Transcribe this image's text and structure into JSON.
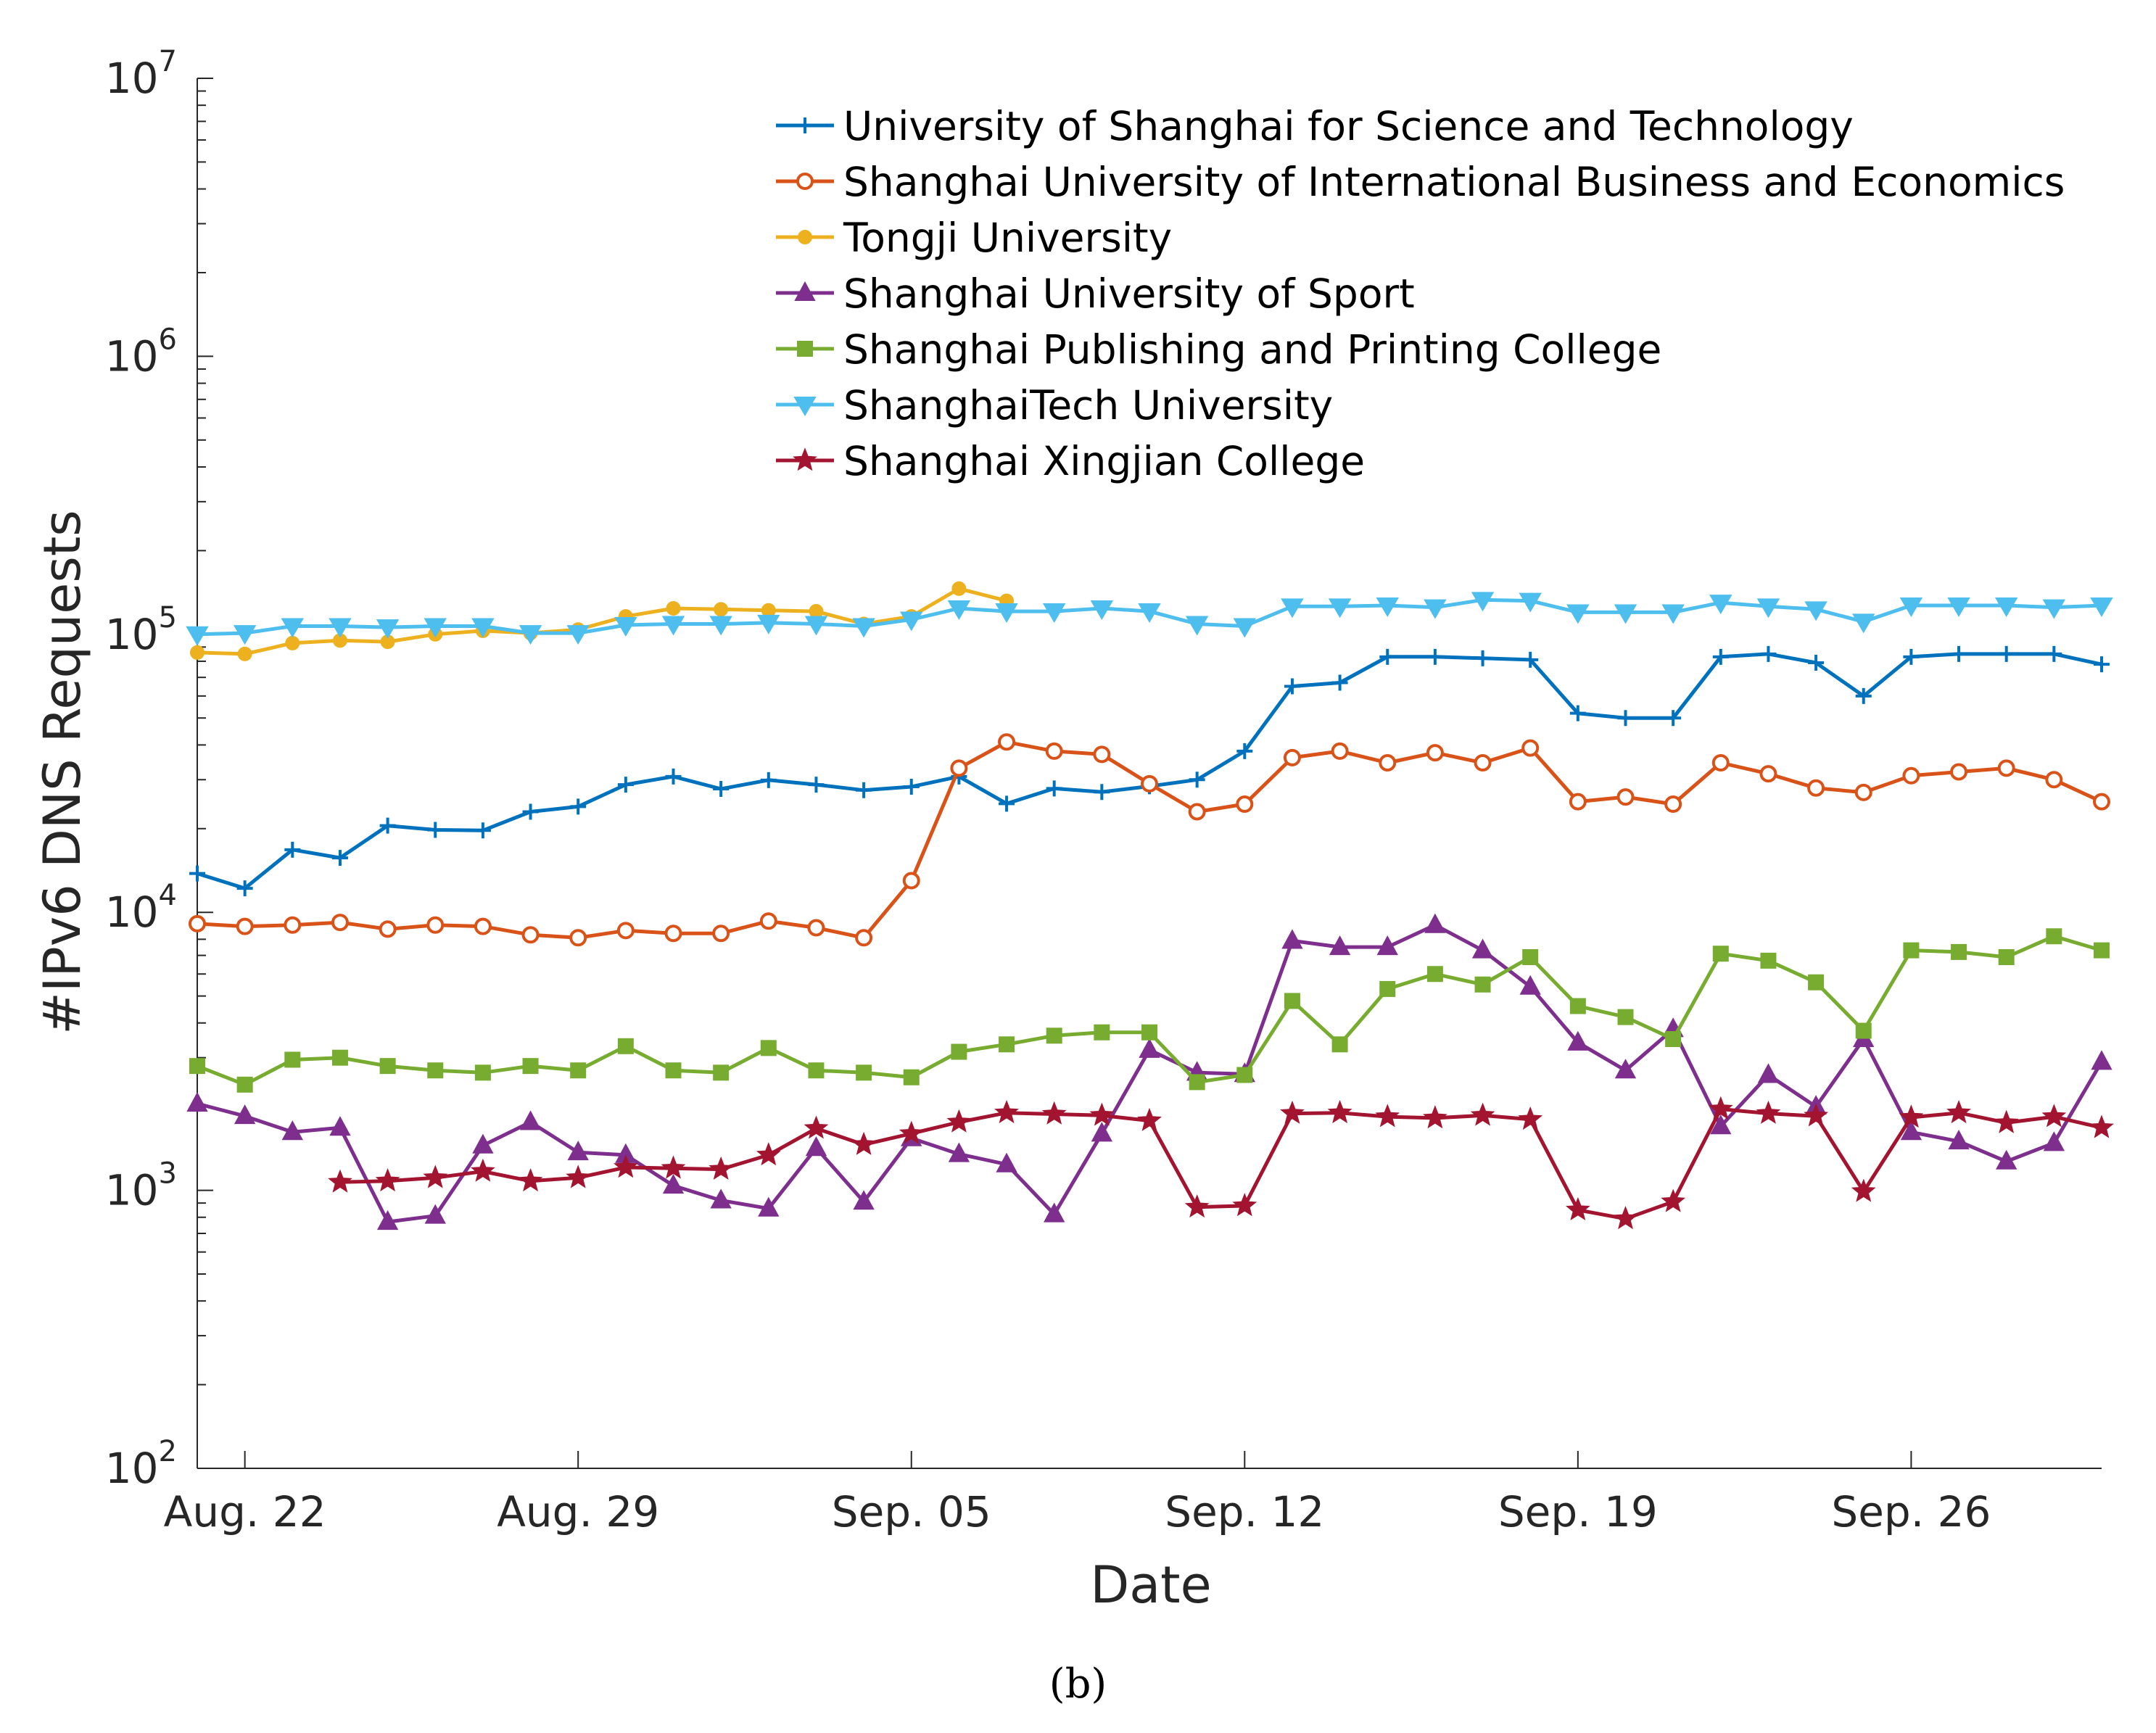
{
  "caption": "(b)",
  "chart_data": {
    "type": "line",
    "xlabel": "Date",
    "ylabel": "#IPv6 DNS Requests",
    "yscale": "log",
    "ylim": [
      100,
      10000000
    ],
    "yticks": [
      {
        "value": 100,
        "base": "10",
        "exp": "2"
      },
      {
        "value": 1000,
        "base": "10",
        "exp": "3"
      },
      {
        "value": 10000,
        "base": "10",
        "exp": "4"
      },
      {
        "value": 100000,
        "base": "10",
        "exp": "5"
      },
      {
        "value": 1000000,
        "base": "10",
        "exp": "6"
      },
      {
        "value": 10000000,
        "base": "10",
        "exp": "7"
      }
    ],
    "x": [
      "Aug. 21",
      "Aug. 22",
      "Aug. 23",
      "Aug. 24",
      "Aug. 25",
      "Aug. 26",
      "Aug. 27",
      "Aug. 28",
      "Aug. 29",
      "Aug. 30",
      "Aug. 31",
      "Sep. 01",
      "Sep. 02",
      "Sep. 03",
      "Sep. 04",
      "Sep. 05",
      "Sep. 06",
      "Sep. 07",
      "Sep. 08",
      "Sep. 09",
      "Sep. 10",
      "Sep. 11",
      "Sep. 12",
      "Sep. 13",
      "Sep. 14",
      "Sep. 15",
      "Sep. 16",
      "Sep. 17",
      "Sep. 18",
      "Sep. 19",
      "Sep. 20",
      "Sep. 21",
      "Sep. 22",
      "Sep. 23",
      "Sep. 24",
      "Sep. 25",
      "Sep. 26",
      "Sep. 27",
      "Sep. 28",
      "Sep. 29",
      "Sep. 30"
    ],
    "xticks": [
      {
        "index": 1,
        "label": "Aug. 22"
      },
      {
        "index": 8,
        "label": "Aug. 29"
      },
      {
        "index": 15,
        "label": "Sep. 05"
      },
      {
        "index": 22,
        "label": "Sep. 12"
      },
      {
        "index": 29,
        "label": "Sep. 19"
      },
      {
        "index": 36,
        "label": "Sep. 26"
      }
    ],
    "grid": false,
    "legend": "top-right",
    "series": [
      {
        "name": "University of Shanghai for Science and Technology",
        "color": "#0072BD",
        "marker": "plus",
        "values": [
          13800,
          12200,
          16800,
          15700,
          20500,
          19800,
          19700,
          23000,
          24000,
          28800,
          30800,
          27800,
          29900,
          28800,
          27500,
          28300,
          30800,
          24600,
          27900,
          27100,
          28400,
          30000,
          38000,
          65000,
          67000,
          83000,
          83000,
          82000,
          81000,
          52000,
          50000,
          50000,
          83000,
          85000,
          79000,
          60000,
          83000,
          85000,
          85000,
          85000,
          78000
        ]
      },
      {
        "name": "Shanghai University of International Business and Economics",
        "color": "#D95319",
        "marker": "circle",
        "values": [
          9100,
          8900,
          9000,
          9200,
          8700,
          9000,
          8900,
          8300,
          8100,
          8600,
          8400,
          8400,
          9300,
          8800,
          8100,
          13000,
          33000,
          41000,
          38000,
          37000,
          29000,
          23000,
          24500,
          36000,
          38000,
          34500,
          37500,
          34500,
          39000,
          25000,
          26000,
          24500,
          34500,
          31500,
          28000,
          27000,
          31000,
          32000,
          33000,
          30000,
          25000
        ]
      },
      {
        "name": "Tongji University",
        "color": "#EDB120",
        "marker": "dot",
        "values": [
          86000,
          85000,
          93000,
          95000,
          94000,
          100000,
          103000,
          101000,
          104000,
          116000,
          124000,
          123000,
          122000,
          121000,
          109000,
          116000,
          146000,
          132000,
          null,
          null,
          null,
          null,
          null,
          null,
          null,
          null,
          null,
          null,
          null,
          null,
          null,
          null,
          null,
          null,
          null,
          null,
          null,
          null,
          null,
          null,
          null
        ]
      },
      {
        "name": "Shanghai University of Sport",
        "color": "#7E2F8E",
        "marker": "triangle-up",
        "values": [
          2050,
          1850,
          1620,
          1680,
          770,
          810,
          1450,
          1760,
          1370,
          1340,
          1040,
          920,
          860,
          1420,
          910,
          1540,
          1350,
          1240,
          820,
          1600,
          3200,
          2650,
          2620,
          7900,
          7500,
          7500,
          9000,
          7300,
          5400,
          3400,
          2700,
          3800,
          1700,
          2600,
          2000,
          3500,
          1620,
          1500,
          1270,
          1480,
          2900
        ]
      },
      {
        "name": "Shanghai Publishing and Printing College",
        "color": "#77AC30",
        "marker": "square",
        "values": [
          2800,
          2400,
          2950,
          3000,
          2800,
          2700,
          2650,
          2800,
          2700,
          3300,
          2700,
          2650,
          3250,
          2700,
          2650,
          2550,
          3150,
          3350,
          3600,
          3700,
          3700,
          2450,
          2600,
          4800,
          3350,
          5300,
          6000,
          5500,
          6900,
          4600,
          4200,
          3500,
          7100,
          6700,
          5600,
          3750,
          7300,
          7200,
          6900,
          8200,
          7300
        ]
      },
      {
        "name": "ShanghaiTech University",
        "color": "#4DBEEE",
        "marker": "triangle-down",
        "values": [
          100000,
          101000,
          107000,
          107000,
          106000,
          107000,
          107000,
          101000,
          101000,
          108000,
          109000,
          109000,
          110000,
          109000,
          107000,
          113000,
          124000,
          121000,
          121000,
          124000,
          121000,
          109000,
          107000,
          126000,
          126000,
          127000,
          125000,
          133000,
          132000,
          120000,
          120000,
          120000,
          130000,
          126000,
          123000,
          111000,
          127000,
          127000,
          127000,
          125000,
          127000
        ]
      },
      {
        "name": "Shanghai Xingjian College",
        "color": "#A2142F",
        "marker": "star",
        "values": [
          null,
          null,
          null,
          1070,
          1080,
          1110,
          1170,
          1080,
          1110,
          1210,
          1200,
          1190,
          1340,
          1670,
          1460,
          1600,
          1760,
          1900,
          1880,
          1860,
          1780,
          870,
          880,
          1890,
          1900,
          1840,
          1820,
          1860,
          1800,
          850,
          790,
          910,
          1960,
          1890,
          1850,
          990,
          1830,
          1900,
          1750,
          1840,
          1680
        ]
      }
    ]
  }
}
